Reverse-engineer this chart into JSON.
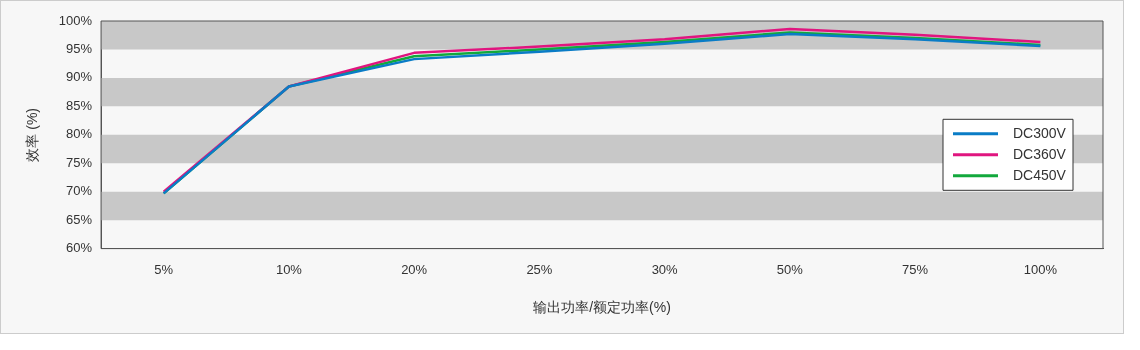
{
  "chart_data": {
    "type": "line",
    "xlabel": "输出功率/额定功率(%)",
    "ylabel": "效率 (%)",
    "categories": [
      "5%",
      "10%",
      "20%",
      "25%",
      "30%",
      "50%",
      "75%",
      "100%"
    ],
    "series": [
      {
        "name": "DC300V",
        "color": "#0a7cc6",
        "values": [
          69.7,
          88.5,
          93.3,
          94.6,
          96.0,
          97.7,
          96.8,
          95.6
        ]
      },
      {
        "name": "DC360V",
        "color": "#e0157f",
        "values": [
          70.0,
          88.5,
          94.4,
          95.5,
          96.8,
          98.6,
          97.6,
          96.3
        ]
      },
      {
        "name": "DC450V",
        "color": "#12a83c",
        "values": [
          69.7,
          88.5,
          93.8,
          95.0,
          96.3,
          98.0,
          97.0,
          95.8
        ]
      }
    ],
    "ylim": [
      60,
      100
    ],
    "yticks": [
      {
        "value": 60,
        "label": "60%"
      },
      {
        "value": 65,
        "label": "65%"
      },
      {
        "value": 70,
        "label": "70%"
      },
      {
        "value": 75,
        "label": "75%"
      },
      {
        "value": 80,
        "label": "80%"
      },
      {
        "value": 85,
        "label": "85%"
      },
      {
        "value": 90,
        "label": "90%"
      },
      {
        "value": 95,
        "label": "95%"
      },
      {
        "value": 100,
        "label": "100%"
      }
    ],
    "bands": [
      {
        "axis": "y",
        "from": 95,
        "to": 100,
        "color": "#c8c8c8"
      },
      {
        "axis": "y",
        "from": 85,
        "to": 90,
        "color": "#c8c8c8"
      },
      {
        "axis": "y",
        "from": 75,
        "to": 80,
        "color": "#c8c8c8"
      },
      {
        "axis": "y",
        "from": 65,
        "to": 70,
        "color": "#c8c8c8"
      }
    ],
    "grid": false,
    "legend": "right",
    "marker": "none",
    "line_style": "solid"
  }
}
